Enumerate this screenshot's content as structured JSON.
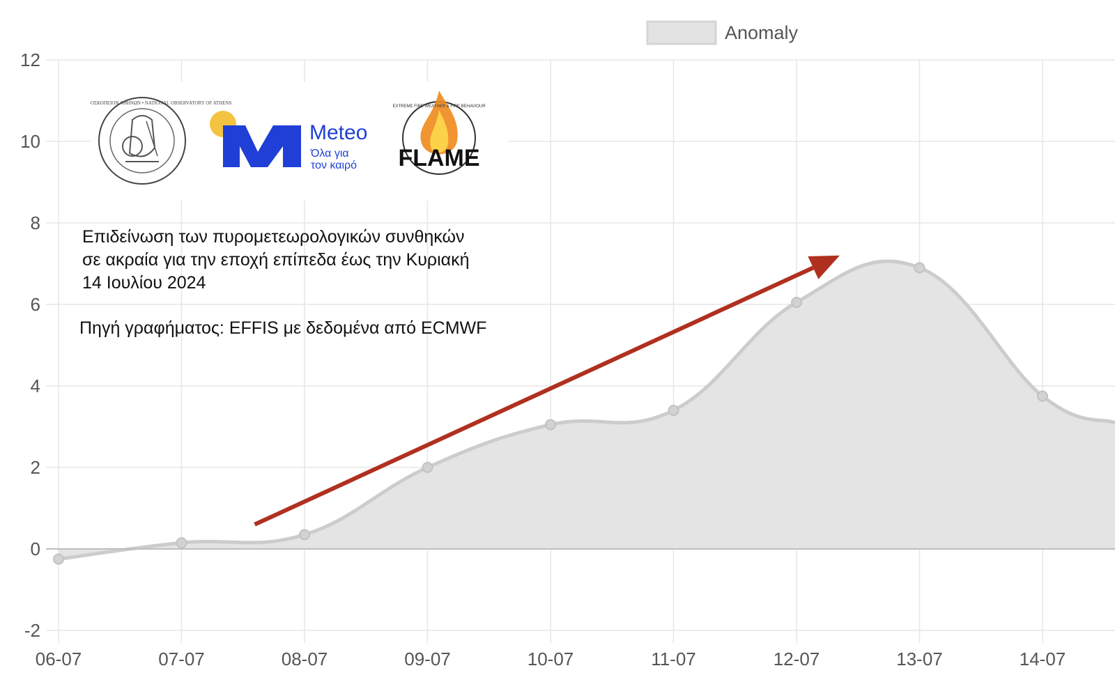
{
  "chart_data": {
    "type": "area",
    "categories": [
      "06-07",
      "07-07",
      "08-07",
      "09-07",
      "10-07",
      "11-07",
      "12-07",
      "13-07",
      "14-07"
    ],
    "series": [
      {
        "name": "Anomaly",
        "values": [
          -0.25,
          0.15,
          0.35,
          2.0,
          3.05,
          3.4,
          6.05,
          6.9,
          3.75
        ]
      }
    ],
    "ylim": [
      -2,
      12
    ],
    "yticks": [
      -2,
      0,
      2,
      4,
      6,
      8,
      10,
      12
    ],
    "xlabel": "",
    "ylabel": "",
    "grid": true,
    "legend_position": "top",
    "title": "",
    "colors": {
      "fill": "#e3e3e3",
      "line": "#cccccc",
      "grid": "#e6e6e6",
      "arrow": "#b03020",
      "zero_line": "#bdbdbd"
    },
    "annotations": {
      "trend_arrow": {
        "from": [
          "07-07",
          0.6
        ],
        "to": [
          "12-07",
          7.2
        ]
      }
    }
  },
  "notes": {
    "main_lines": [
      "Επιδείνωση των πυρομετεωρολογικών συνθηκών",
      "σε ακραία για την εποχή επίπεδα έως την Κυριακή",
      "14 Ιουλίου 2024"
    ],
    "source": "Πηγή γραφήματος: EFFIS με δεδομένα από ECMWF"
  },
  "logos": {
    "observatory": {
      "ring_text": "ΕΘΝΙΚΟΝ ΑΣΤΕΡΟΣΚΟΠΕΙΟΝ ΑΘΗΝΩΝ • NATIONAL OBSERVATORY OF ATHENS",
      "icon": "observatory-seal-icon"
    },
    "meteo": {
      "word": "Meteo",
      "tagline_1": "Όλα για",
      "tagline_2": "τον καιρό",
      "brand_color": "#1f3fd6",
      "dot_color": "#f5c342"
    },
    "flame": {
      "word": "FLAME",
      "ring_text": "EXTREME FIRE WEATHER & FIRE BEHAVIOUR"
    }
  }
}
